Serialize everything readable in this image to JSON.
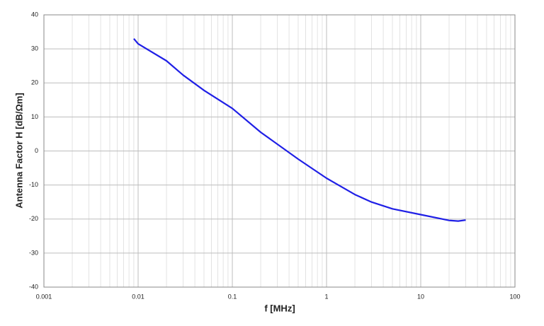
{
  "chart_data": {
    "type": "line",
    "x_label": "f [MHz]",
    "y_label": "Antenna Factor H [dB/Ωm]",
    "x_scale": "log",
    "grid": true,
    "minor_grid": true,
    "xlim": [
      0.001,
      100
    ],
    "xticks": [
      0.001,
      0.01,
      0.1,
      1,
      10,
      100
    ],
    "ylim": [
      -40,
      40
    ],
    "yticks": [
      -40,
      -30,
      -20,
      -10,
      0,
      10,
      20,
      30,
      40
    ],
    "series": [
      {
        "color": "#1f1fe6",
        "x": [
          0.009,
          0.01,
          0.02,
          0.03,
          0.05,
          0.1,
          0.2,
          0.5,
          1,
          2,
          3,
          5,
          10,
          20,
          25,
          30
        ],
        "values": [
          33,
          31.5,
          26.5,
          22.3,
          17.8,
          12.5,
          5.5,
          -2.4,
          -8,
          -12.8,
          -15,
          -17,
          -18.7,
          -20.4,
          -20.6,
          -20.3
        ]
      }
    ]
  }
}
